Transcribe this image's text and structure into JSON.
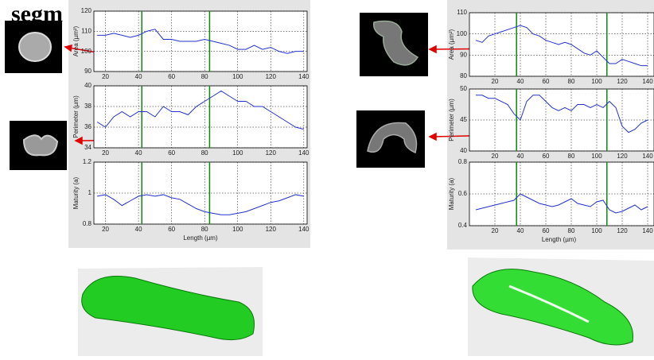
{
  "title": "segm",
  "chart_data": [
    {
      "type": "line",
      "ylabel": "Area (µm²)",
      "color": "#2233cc",
      "grid": true,
      "x": [
        15,
        20,
        25,
        30,
        35,
        40,
        45,
        50,
        55,
        60,
        65,
        70,
        75,
        80,
        85,
        90,
        95,
        100,
        105,
        110,
        115,
        120,
        125,
        130,
        135,
        140
      ],
      "values": [
        108,
        108,
        109,
        108,
        107,
        108,
        110,
        111,
        106,
        106,
        105,
        105,
        105,
        106,
        105,
        104,
        103,
        101,
        101,
        103,
        101,
        102,
        100,
        99,
        100,
        100
      ],
      "xlim": [
        13,
        142
      ],
      "ylim": [
        90,
        120
      ],
      "xticks": [
        20,
        40,
        60,
        80,
        100,
        120,
        140
      ],
      "yticks": [
        90,
        100,
        110,
        120
      ],
      "vlines": [
        42,
        83
      ]
    },
    {
      "type": "line",
      "ylabel": "Perimeter (µm)",
      "color": "#2233cc",
      "grid": true,
      "x": [
        15,
        20,
        25,
        30,
        35,
        40,
        45,
        50,
        55,
        60,
        65,
        70,
        75,
        80,
        85,
        90,
        95,
        100,
        105,
        110,
        115,
        120,
        125,
        130,
        135,
        140
      ],
      "values": [
        36.5,
        36,
        37,
        37.5,
        37,
        37.5,
        37.5,
        37,
        38,
        37.5,
        37.5,
        37.2,
        38,
        38.5,
        39,
        39.5,
        39,
        38.5,
        38.5,
        38,
        38,
        37.5,
        37,
        36.5,
        36,
        35.8
      ],
      "xlim": [
        13,
        142
      ],
      "ylim": [
        34,
        40
      ],
      "xticks": [
        20,
        40,
        60,
        80,
        100,
        120,
        140
      ],
      "yticks": [
        34,
        36,
        38,
        40
      ],
      "vlines": [
        42,
        83
      ]
    },
    {
      "type": "line",
      "ylabel": "Maturity (a)",
      "xlabel": "Length (µm)",
      "color": "#2233cc",
      "grid": true,
      "x": [
        15,
        20,
        25,
        30,
        35,
        40,
        45,
        50,
        55,
        60,
        65,
        70,
        75,
        80,
        85,
        90,
        95,
        100,
        105,
        110,
        115,
        120,
        125,
        130,
        135,
        140
      ],
      "values": [
        0.98,
        0.99,
        0.96,
        0.92,
        0.95,
        0.98,
        0.99,
        0.98,
        0.99,
        0.97,
        0.96,
        0.93,
        0.9,
        0.88,
        0.87,
        0.86,
        0.86,
        0.87,
        0.88,
        0.9,
        0.92,
        0.94,
        0.95,
        0.97,
        0.99,
        0.98
      ],
      "xlim": [
        13,
        142
      ],
      "ylim": [
        0.8,
        1.2
      ],
      "xticks": [
        20,
        40,
        60,
        80,
        100,
        120,
        140
      ],
      "yticks": [
        0.8,
        1,
        1.2
      ],
      "vlines": [
        42,
        83
      ]
    },
    {
      "type": "line",
      "ylabel": "Area (µm²)",
      "color": "#2233cc",
      "grid": true,
      "x": [
        5,
        10,
        15,
        20,
        25,
        30,
        35,
        40,
        45,
        50,
        55,
        60,
        65,
        70,
        75,
        80,
        85,
        90,
        95,
        100,
        105,
        110,
        115,
        120,
        125,
        130,
        135,
        140
      ],
      "values": [
        97,
        96,
        99,
        100,
        101,
        102,
        103,
        104,
        103,
        100,
        99,
        97,
        96,
        95,
        96,
        95,
        93,
        91,
        90,
        92,
        89,
        86,
        86,
        88,
        87,
        86,
        85,
        85
      ],
      "xlim": [
        0,
        145
      ],
      "ylim": [
        80,
        110
      ],
      "xticks": [
        20,
        40,
        60,
        80,
        100,
        120,
        140
      ],
      "yticks": [
        80,
        90,
        100,
        110
      ],
      "vlines": [
        37,
        108
      ]
    },
    {
      "type": "line",
      "ylabel": "Perimeter (µm)",
      "color": "#2233cc",
      "grid": true,
      "x": [
        5,
        10,
        15,
        20,
        25,
        30,
        35,
        40,
        45,
        50,
        55,
        60,
        65,
        70,
        75,
        80,
        85,
        90,
        95,
        100,
        105,
        110,
        115,
        120,
        125,
        130,
        135,
        140
      ],
      "values": [
        49,
        49,
        48.5,
        48.5,
        48,
        47.5,
        46,
        45,
        48,
        49,
        49,
        48,
        47,
        46.5,
        47,
        46.5,
        47.5,
        47.5,
        47,
        47.5,
        47,
        48,
        47,
        44,
        43,
        43.5,
        44.5,
        45
      ],
      "xlim": [
        0,
        145
      ],
      "ylim": [
        40,
        50
      ],
      "xticks": [
        20,
        40,
        60,
        80,
        100,
        120,
        140
      ],
      "yticks": [
        40,
        45,
        50
      ],
      "vlines": [
        37,
        108
      ]
    },
    {
      "type": "line",
      "ylabel": "Maturity (a)",
      "xlabel": "Length (µm)",
      "color": "#2233cc",
      "grid": true,
      "x": [
        5,
        10,
        15,
        20,
        25,
        30,
        35,
        40,
        45,
        50,
        55,
        60,
        65,
        70,
        75,
        80,
        85,
        90,
        95,
        100,
        105,
        110,
        115,
        120,
        125,
        130,
        135,
        140
      ],
      "values": [
        0.5,
        0.51,
        0.52,
        0.53,
        0.54,
        0.55,
        0.56,
        0.6,
        0.58,
        0.56,
        0.54,
        0.53,
        0.52,
        0.53,
        0.55,
        0.57,
        0.54,
        0.53,
        0.52,
        0.55,
        0.56,
        0.5,
        0.48,
        0.49,
        0.51,
        0.53,
        0.5,
        0.52
      ],
      "xlim": [
        0,
        145
      ],
      "ylim": [
        0.4,
        0.8
      ],
      "xticks": [
        20,
        40,
        60,
        80,
        100,
        120,
        140
      ],
      "yticks": [
        0.4,
        0.6,
        0.8
      ],
      "vlines": [
        37,
        108
      ]
    }
  ]
}
